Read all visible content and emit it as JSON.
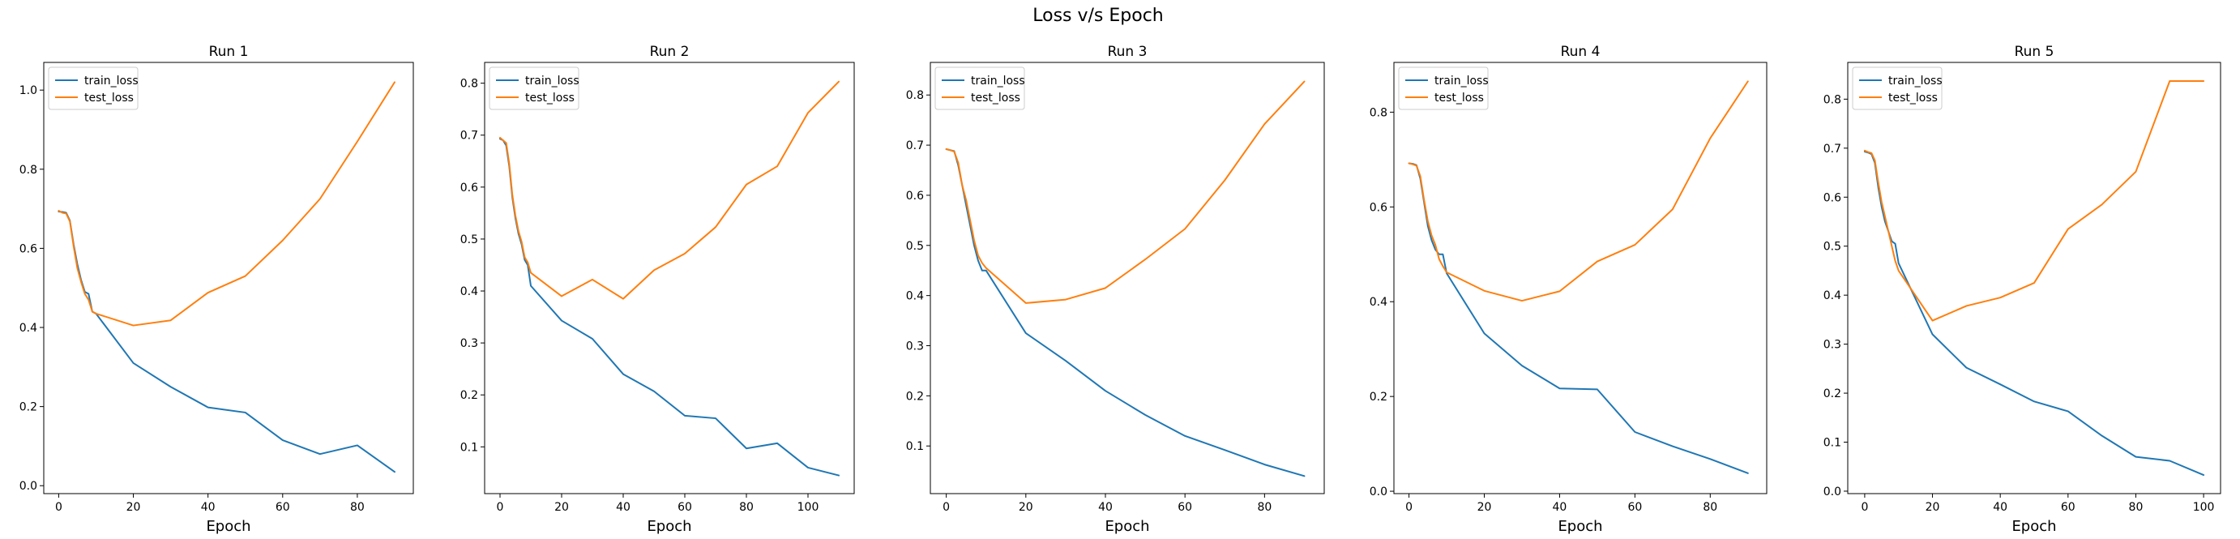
{
  "figure": {
    "suptitle": "Loss v/s Epoch"
  },
  "colors": {
    "train_loss": "#1f77b4",
    "test_loss": "#ff7f0e"
  },
  "chart_data": [
    {
      "type": "line",
      "title": "Run 1",
      "xlabel": "Epoch",
      "ylabel": "",
      "legend": "upper-left",
      "xlim": [
        -4,
        95
      ],
      "ylim": [
        -0.02,
        1.07
      ],
      "xticks": [
        0,
        20,
        40,
        60,
        80
      ],
      "yticks": [
        0.0,
        0.2,
        0.4,
        0.6,
        0.8,
        1.0
      ],
      "ytick_labels": [
        "0.0",
        "0.2",
        "0.4",
        "0.6",
        "0.8",
        "1.0"
      ],
      "series": [
        {
          "name": "train_loss",
          "x": [
            0,
            1,
            2,
            3,
            4,
            5,
            6,
            7,
            8,
            9,
            10,
            20,
            30,
            40,
            50,
            60,
            70,
            80,
            90
          ],
          "y": [
            0.693,
            0.692,
            0.69,
            0.67,
            0.61,
            0.56,
            0.52,
            0.49,
            0.485,
            0.44,
            0.435,
            0.31,
            0.25,
            0.198,
            0.185,
            0.115,
            0.08,
            0.102,
            0.035
          ]
        },
        {
          "name": "test_loss",
          "x": [
            0,
            1,
            2,
            3,
            4,
            5,
            6,
            7,
            8,
            9,
            10,
            20,
            30,
            40,
            50,
            60,
            70,
            80,
            90
          ],
          "y": [
            0.695,
            0.69,
            0.688,
            0.668,
            0.605,
            0.55,
            0.515,
            0.485,
            0.47,
            0.44,
            0.435,
            0.405,
            0.418,
            0.488,
            0.53,
            0.62,
            0.725,
            0.87,
            1.02
          ]
        }
      ]
    },
    {
      "type": "line",
      "title": "Run 2",
      "xlabel": "Epoch",
      "ylabel": "",
      "legend": "upper-left",
      "xlim": [
        -5,
        115
      ],
      "ylim": [
        0.01,
        0.84
      ],
      "xticks": [
        0,
        20,
        40,
        60,
        80,
        100
      ],
      "yticks": [
        0.1,
        0.2,
        0.3,
        0.4,
        0.5,
        0.6,
        0.7,
        0.8
      ],
      "ytick_labels": [
        "0.1",
        "0.2",
        "0.3",
        "0.4",
        "0.5",
        "0.6",
        "0.7",
        "0.8"
      ],
      "series": [
        {
          "name": "train_loss",
          "x": [
            0,
            1,
            2,
            3,
            4,
            5,
            6,
            7,
            8,
            9,
            10,
            20,
            30,
            40,
            50,
            60,
            70,
            80,
            90,
            100,
            110
          ],
          "y": [
            0.693,
            0.69,
            0.68,
            0.64,
            0.58,
            0.54,
            0.51,
            0.49,
            0.46,
            0.45,
            0.41,
            0.343,
            0.308,
            0.24,
            0.207,
            0.16,
            0.155,
            0.097,
            0.107,
            0.06,
            0.045
          ]
        },
        {
          "name": "test_loss",
          "x": [
            0,
            1,
            2,
            3,
            4,
            5,
            6,
            7,
            8,
            9,
            10,
            20,
            30,
            40,
            50,
            60,
            70,
            80,
            90,
            100,
            110
          ],
          "y": [
            0.695,
            0.69,
            0.685,
            0.645,
            0.585,
            0.545,
            0.515,
            0.495,
            0.465,
            0.455,
            0.435,
            0.39,
            0.422,
            0.385,
            0.44,
            0.472,
            0.523,
            0.605,
            0.64,
            0.743,
            0.803
          ]
        }
      ]
    },
    {
      "type": "line",
      "title": "Run 3",
      "xlabel": "Epoch",
      "ylabel": "",
      "legend": "upper-left",
      "xlim": [
        -4,
        95
      ],
      "ylim": [
        0.005,
        0.865
      ],
      "xticks": [
        0,
        20,
        40,
        60,
        80
      ],
      "yticks": [
        0.1,
        0.2,
        0.3,
        0.4,
        0.5,
        0.6,
        0.7,
        0.8
      ],
      "ytick_labels": [
        "0.1",
        "0.2",
        "0.3",
        "0.4",
        "0.5",
        "0.6",
        "0.7",
        "0.8"
      ],
      "series": [
        {
          "name": "train_loss",
          "x": [
            0,
            1,
            2,
            3,
            4,
            5,
            6,
            7,
            8,
            9,
            10,
            20,
            30,
            40,
            50,
            60,
            70,
            80,
            90
          ],
          "y": [
            0.692,
            0.69,
            0.688,
            0.66,
            0.62,
            0.58,
            0.54,
            0.5,
            0.47,
            0.45,
            0.45,
            0.325,
            0.27,
            0.21,
            0.162,
            0.12,
            0.092,
            0.063,
            0.04
          ]
        },
        {
          "name": "test_loss",
          "x": [
            0,
            1,
            2,
            3,
            4,
            5,
            6,
            7,
            8,
            9,
            10,
            20,
            30,
            40,
            50,
            60,
            70,
            80,
            90
          ],
          "y": [
            0.692,
            0.69,
            0.687,
            0.665,
            0.62,
            0.59,
            0.55,
            0.51,
            0.48,
            0.465,
            0.455,
            0.385,
            0.392,
            0.415,
            0.472,
            0.533,
            0.63,
            0.742,
            0.827
          ]
        }
      ]
    },
    {
      "type": "line",
      "title": "Run 4",
      "xlabel": "Epoch",
      "ylabel": "",
      "legend": "upper-left",
      "xlim": [
        -4,
        95
      ],
      "ylim": [
        -0.005,
        0.905
      ],
      "xticks": [
        0,
        20,
        40,
        60,
        80
      ],
      "yticks": [
        0.0,
        0.2,
        0.4,
        0.6,
        0.8
      ],
      "ytick_labels": [
        "0.0",
        "0.2",
        "0.4",
        "0.6",
        "0.8"
      ],
      "series": [
        {
          "name": "train_loss",
          "x": [
            0,
            1,
            2,
            3,
            4,
            5,
            6,
            7,
            8,
            9,
            10,
            20,
            30,
            40,
            50,
            60,
            70,
            80,
            90
          ],
          "y": [
            0.692,
            0.691,
            0.688,
            0.66,
            0.61,
            0.56,
            0.53,
            0.51,
            0.5,
            0.5,
            0.46,
            0.333,
            0.265,
            0.217,
            0.215,
            0.125,
            0.095,
            0.068,
            0.038
          ]
        },
        {
          "name": "test_loss",
          "x": [
            0,
            1,
            2,
            3,
            4,
            5,
            6,
            7,
            8,
            9,
            10,
            20,
            30,
            40,
            50,
            60,
            70,
            80,
            90
          ],
          "y": [
            0.692,
            0.69,
            0.687,
            0.665,
            0.615,
            0.57,
            0.54,
            0.52,
            0.49,
            0.475,
            0.462,
            0.423,
            0.402,
            0.422,
            0.485,
            0.52,
            0.595,
            0.745,
            0.865
          ]
        }
      ]
    },
    {
      "type": "line",
      "title": "Run 5",
      "xlabel": "Epoch",
      "ylabel": "",
      "legend": "upper-left",
      "xlim": [
        -5,
        105
      ],
      "ylim": [
        -0.005,
        0.875
      ],
      "xticks": [
        0,
        20,
        40,
        60,
        80,
        100
      ],
      "yticks": [
        0.0,
        0.1,
        0.2,
        0.3,
        0.4,
        0.5,
        0.6,
        0.7,
        0.8
      ],
      "ytick_labels": [
        "0.0",
        "0.1",
        "0.2",
        "0.3",
        "0.4",
        "0.5",
        "0.6",
        "0.7",
        "0.8"
      ],
      "series": [
        {
          "name": "train_loss",
          "x": [
            0,
            1,
            2,
            3,
            4,
            5,
            6,
            7,
            8,
            9,
            10,
            20,
            30,
            40,
            50,
            60,
            70,
            80,
            90,
            100
          ],
          "y": [
            0.693,
            0.691,
            0.688,
            0.67,
            0.62,
            0.58,
            0.55,
            0.53,
            0.51,
            0.505,
            0.465,
            0.32,
            0.252,
            0.218,
            0.183,
            0.163,
            0.113,
            0.07,
            0.062,
            0.033
          ]
        },
        {
          "name": "test_loss",
          "x": [
            0,
            1,
            2,
            3,
            4,
            5,
            6,
            7,
            8,
            9,
            10,
            20,
            30,
            40,
            50,
            60,
            70,
            80,
            90,
            100
          ],
          "y": [
            0.695,
            0.692,
            0.69,
            0.675,
            0.63,
            0.59,
            0.56,
            0.53,
            0.5,
            0.47,
            0.45,
            0.348,
            0.378,
            0.395,
            0.425,
            0.535,
            0.585,
            0.652,
            0.837,
            0.837
          ]
        }
      ]
    }
  ]
}
